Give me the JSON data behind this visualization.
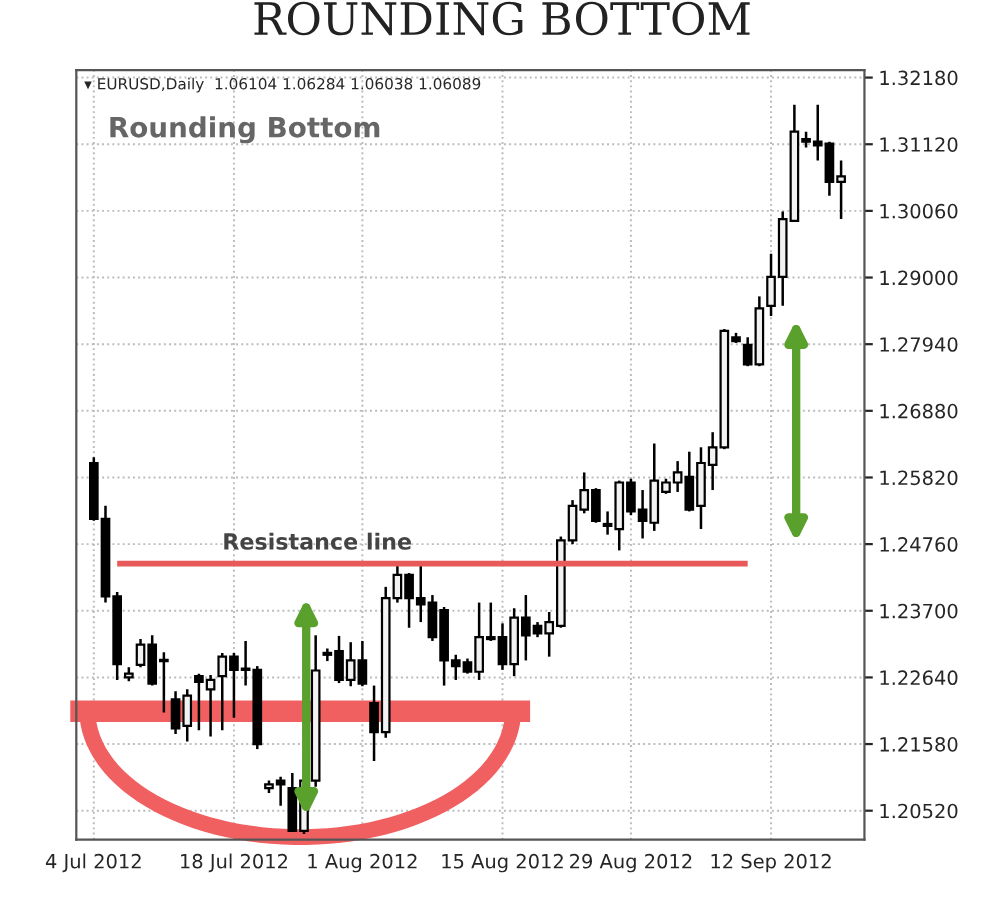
{
  "chart_data": {
    "type": "candlestick",
    "title": "ROUNDING BOTTOM",
    "annotations": [
      "▾ EURUSD,Daily  1.06104 1.06284 1.06038 1.06089",
      "Rounding Bottom"
    ],
    "categories": [
      "4 Jul 2012",
      null,
      null,
      null,
      null,
      null,
      null,
      null,
      null,
      null,
      null,
      null,
      "18 Jul 2012",
      null,
      null,
      null,
      null,
      null,
      null,
      null,
      null,
      null,
      null,
      "1 Aug 2012",
      null,
      null,
      null,
      null,
      null,
      null,
      null,
      null,
      null,
      null,
      null,
      "15 Aug 2012",
      null,
      null,
      null,
      null,
      null,
      null,
      null,
      null,
      null,
      null,
      "29 Aug 2012",
      null,
      null,
      null,
      null,
      null,
      null,
      null,
      null,
      null,
      null,
      null,
      "12 Sep 2012",
      null,
      null,
      null,
      null,
      null,
      null
    ],
    "ohlc": [
      [
        1.2605,
        1.2614,
        1.2513,
        1.2516
      ],
      [
        1.2516,
        1.2537,
        1.2383,
        1.2393
      ],
      [
        1.2393,
        1.24,
        1.226,
        1.2285
      ],
      [
        1.2264,
        1.228,
        1.2258,
        1.227
      ],
      [
        1.2284,
        1.2325,
        1.228,
        1.2316
      ],
      [
        1.2316,
        1.2331,
        1.2251,
        1.2254
      ],
      [
        1.229,
        1.2304,
        1.2208,
        1.2292
      ],
      [
        1.2229,
        1.2242,
        1.2174,
        1.2183
      ],
      [
        1.2187,
        1.2245,
        1.2162,
        1.2235
      ],
      [
        1.2266,
        1.227,
        1.218,
        1.2257
      ],
      [
        1.2245,
        1.2268,
        1.217,
        1.226
      ],
      [
        1.2266,
        1.2303,
        1.218,
        1.2297
      ],
      [
        1.2297,
        1.2303,
        1.22,
        1.2276
      ],
      [
        1.2276,
        1.2322,
        1.2251,
        1.2278
      ],
      [
        1.2276,
        1.2282,
        1.215,
        1.2158
      ],
      [
        1.2088,
        1.21,
        1.208,
        1.2094
      ],
      [
        1.21,
        1.2106,
        1.206,
        1.2094
      ],
      [
        1.2088,
        1.2112,
        1.2018,
        1.202
      ],
      [
        1.202,
        1.211,
        1.2015,
        1.21
      ],
      [
        1.21,
        1.2331,
        1.209,
        1.2275
      ],
      [
        1.23,
        1.231,
        1.229,
        1.2303
      ],
      [
        1.2306,
        1.233,
        1.2255,
        1.226
      ],
      [
        1.226,
        1.232,
        1.225,
        1.2291
      ],
      [
        1.2291,
        1.2322,
        1.225,
        1.2254
      ],
      [
        1.2223,
        1.2251,
        1.2131,
        1.2177
      ],
      [
        1.2177,
        1.2408,
        1.2168,
        1.239
      ],
      [
        1.239,
        1.2445,
        1.2383,
        1.2427
      ],
      [
        1.2427,
        1.243,
        1.2343,
        1.239
      ],
      [
        1.239,
        1.2445,
        1.2352,
        1.238
      ],
      [
        1.2383,
        1.2395,
        1.2322,
        1.2328
      ],
      [
        1.2371,
        1.2376,
        1.2251,
        1.2291
      ],
      [
        1.2291,
        1.23,
        1.226,
        1.2282
      ],
      [
        1.2288,
        1.2294,
        1.227,
        1.2273
      ],
      [
        1.2273,
        1.2383,
        1.226,
        1.2328
      ],
      [
        1.2325,
        1.2383,
        1.2322,
        1.2328
      ],
      [
        1.2328,
        1.235,
        1.2276,
        1.2285
      ],
      [
        1.2285,
        1.2374,
        1.2266,
        1.2359
      ],
      [
        1.2359,
        1.2395,
        1.2291,
        1.2331
      ],
      [
        1.2346,
        1.2352,
        1.2328,
        1.2334
      ],
      [
        1.2334,
        1.2368,
        1.2297,
        1.2352
      ],
      [
        1.2346,
        1.2488,
        1.2343,
        1.2482
      ],
      [
        1.2482,
        1.2546,
        1.2476,
        1.2537
      ],
      [
        1.2531,
        1.259,
        1.2525,
        1.2562
      ],
      [
        1.2562,
        1.2565,
        1.251,
        1.2513
      ],
      [
        1.2505,
        1.2528,
        1.2491,
        1.2508
      ],
      [
        1.25,
        1.2577,
        1.2466,
        1.2574
      ],
      [
        1.2574,
        1.258,
        1.2522,
        1.2528
      ],
      [
        1.2531,
        1.2562,
        1.2485,
        1.2513
      ],
      [
        1.251,
        1.2636,
        1.2497,
        1.2577
      ],
      [
        1.2559,
        1.258,
        1.2556,
        1.2574
      ],
      [
        1.2574,
        1.2608,
        1.2559,
        1.259
      ],
      [
        1.2583,
        1.2623,
        1.2528,
        1.2531
      ],
      [
        1.2537,
        1.263,
        1.25,
        1.2605
      ],
      [
        1.2602,
        1.2654,
        1.2562,
        1.263
      ],
      [
        1.263,
        1.2818,
        1.2627,
        1.2815
      ],
      [
        1.2805,
        1.2812,
        1.2796,
        1.2799
      ],
      [
        1.2793,
        1.2805,
        1.2759,
        1.2762
      ],
      [
        1.2762,
        1.287,
        1.2759,
        1.2851
      ],
      [
        1.2855,
        1.2938,
        1.2839,
        1.2901
      ],
      [
        1.2901,
        1.3005,
        1.2855,
        1.2993
      ],
      [
        1.299,
        1.3175,
        1.299,
        1.3132
      ],
      [
        1.312,
        1.3132,
        1.3107,
        1.3116
      ],
      [
        1.3116,
        1.3175,
        1.3086,
        1.311
      ],
      [
        1.3113,
        1.3116,
        1.303,
        1.3052
      ],
      [
        1.3052,
        1.3086,
        1.2993,
        1.3061
      ]
    ],
    "ylim": [
      1.2006,
      1.323
    ],
    "yticks": [
      {
        "value": 1.3218,
        "label": "1.32180"
      },
      {
        "value": 1.3112,
        "label": "1.31120"
      },
      {
        "value": 1.3006,
        "label": "1.30060"
      },
      {
        "value": 1.29,
        "label": "1.29000"
      },
      {
        "value": 1.2794,
        "label": "1.27940"
      },
      {
        "value": 1.2688,
        "label": "1.26880"
      },
      {
        "value": 1.2582,
        "label": "1.25820"
      },
      {
        "value": 1.2476,
        "label": "1.24760"
      },
      {
        "value": 1.237,
        "label": "1.23700"
      },
      {
        "value": 1.2264,
        "label": "1.22640"
      },
      {
        "value": 1.2158,
        "label": "1.21580"
      },
      {
        "value": 1.2052,
        "label": "1.20520"
      }
    ],
    "ref_lines": [
      {
        "axis": "y",
        "value": 1.2445,
        "label": "Resistance line",
        "color": "#e85a5a"
      }
    ],
    "grid": true
  }
}
